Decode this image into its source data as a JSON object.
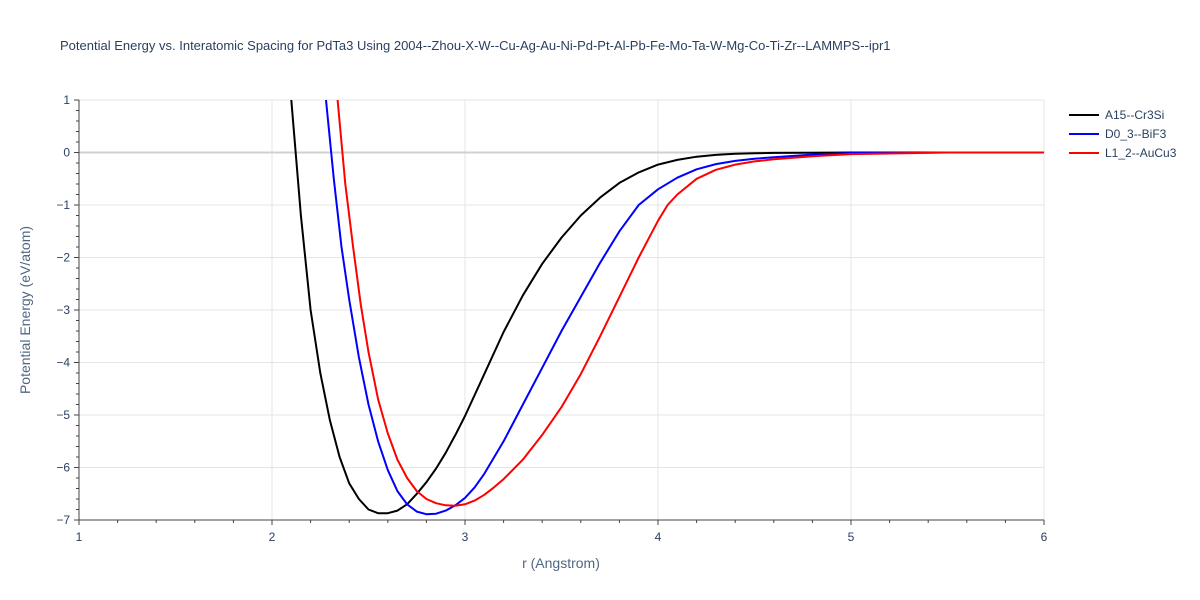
{
  "chart_data": {
    "type": "line",
    "title": "Potential Energy vs. Interatomic Spacing for PdTa3 Using 2004--Zhou-X-W--Cu-Ag-Au-Ni-Pd-Pt-Al-Pb-Fe-Mo-Ta-W-Mg-Co-Ti-Zr--LAMMPS--ipr1",
    "xlabel": "r (Angstrom)",
    "ylabel": "Potential Energy (eV/atom)",
    "xlim": [
      1,
      6
    ],
    "ylim": [
      -7,
      1
    ],
    "x_ticks": [
      1,
      2,
      3,
      4,
      5,
      6
    ],
    "y_ticks": [
      1,
      0,
      -1,
      -2,
      -3,
      -4,
      -5,
      -6,
      -7
    ],
    "x_tick_labels": [
      "1",
      "2",
      "3",
      "4",
      "5",
      "6"
    ],
    "y_tick_labels": [
      "1",
      "0",
      "−1",
      "−2",
      "−3",
      "−4",
      "−5",
      "−6",
      "−7"
    ],
    "grid": true,
    "legend_position": "top-right",
    "series": [
      {
        "name": "A15--Cr3Si",
        "color": "#000000",
        "x": [
          2.1,
          2.15,
          2.2,
          2.25,
          2.3,
          2.35,
          2.4,
          2.45,
          2.5,
          2.55,
          2.6,
          2.65,
          2.7,
          2.75,
          2.8,
          2.85,
          2.9,
          2.95,
          3.0,
          3.1,
          3.2,
          3.3,
          3.4,
          3.5,
          3.6,
          3.7,
          3.8,
          3.9,
          4.0,
          4.1,
          4.2,
          4.3,
          4.4,
          4.5,
          4.6,
          4.8,
          5.0,
          5.5,
          6.0
        ],
        "y": [
          1.0,
          -1.2,
          -3.0,
          -4.2,
          -5.1,
          -5.8,
          -6.3,
          -6.6,
          -6.8,
          -6.87,
          -6.87,
          -6.82,
          -6.7,
          -6.5,
          -6.28,
          -6.02,
          -5.72,
          -5.38,
          -5.02,
          -4.22,
          -3.42,
          -2.72,
          -2.12,
          -1.62,
          -1.2,
          -0.86,
          -0.58,
          -0.38,
          -0.23,
          -0.14,
          -0.08,
          -0.045,
          -0.025,
          -0.015,
          -0.008,
          -0.003,
          0.0,
          0.0,
          0.0
        ]
      },
      {
        "name": "D0_3--BiF3",
        "color": "#0000ff",
        "x": [
          2.28,
          2.32,
          2.36,
          2.4,
          2.45,
          2.5,
          2.55,
          2.6,
          2.65,
          2.7,
          2.75,
          2.8,
          2.85,
          2.9,
          2.95,
          3.0,
          3.05,
          3.1,
          3.2,
          3.3,
          3.4,
          3.5,
          3.6,
          3.7,
          3.8,
          3.9,
          4.0,
          4.1,
          4.2,
          4.3,
          4.4,
          4.5,
          4.6,
          4.8,
          5.0,
          5.5,
          6.0
        ],
        "y": [
          1.0,
          -0.5,
          -1.8,
          -2.8,
          -3.9,
          -4.8,
          -5.5,
          -6.05,
          -6.45,
          -6.7,
          -6.84,
          -6.89,
          -6.88,
          -6.82,
          -6.72,
          -6.58,
          -6.38,
          -6.12,
          -5.5,
          -4.8,
          -4.1,
          -3.4,
          -2.75,
          -2.1,
          -1.5,
          -1.0,
          -0.7,
          -0.48,
          -0.32,
          -0.22,
          -0.16,
          -0.12,
          -0.09,
          -0.04,
          -0.01,
          0.0,
          0.0
        ]
      },
      {
        "name": "L1_2--AuCu3",
        "color": "#ff0000",
        "x": [
          2.34,
          2.38,
          2.42,
          2.46,
          2.5,
          2.55,
          2.6,
          2.65,
          2.7,
          2.75,
          2.8,
          2.85,
          2.9,
          2.95,
          3.0,
          3.05,
          3.1,
          3.15,
          3.2,
          3.3,
          3.4,
          3.5,
          3.6,
          3.7,
          3.8,
          3.9,
          4.0,
          4.05,
          4.1,
          4.2,
          4.3,
          4.4,
          4.5,
          4.6,
          4.8,
          5.0,
          5.5,
          6.0
        ],
        "y": [
          1.0,
          -0.6,
          -1.8,
          -2.9,
          -3.8,
          -4.7,
          -5.35,
          -5.85,
          -6.2,
          -6.45,
          -6.6,
          -6.68,
          -6.72,
          -6.73,
          -6.7,
          -6.63,
          -6.52,
          -6.38,
          -6.22,
          -5.85,
          -5.38,
          -4.85,
          -4.22,
          -3.5,
          -2.75,
          -2.0,
          -1.3,
          -1.0,
          -0.8,
          -0.5,
          -0.33,
          -0.23,
          -0.17,
          -0.13,
          -0.07,
          -0.03,
          0.0,
          0.0
        ]
      }
    ]
  }
}
